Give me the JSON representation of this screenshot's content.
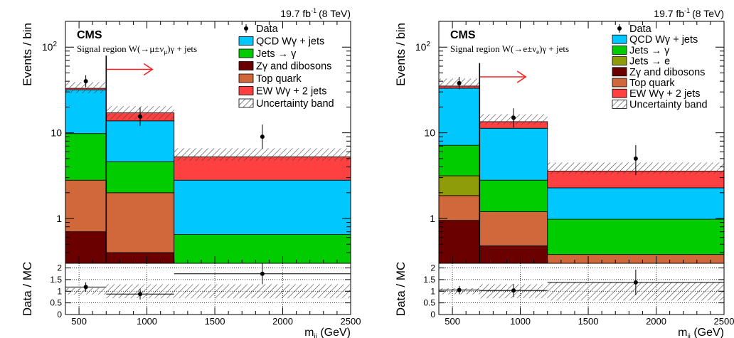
{
  "chart_data": [
    {
      "type": "bar",
      "stacked": true,
      "log_scale_y": true,
      "experiment": "CMS",
      "luminosity": "19.7 fb",
      "luminosity_sup": "-1",
      "energy": "(8 TeV)",
      "region": {
        "pre": "Signal region W(",
        "process": "→μ±ν",
        "sub": "μ",
        "post": ")γ + jets"
      },
      "ylabel": "Events / bin",
      "xlabel": "m",
      "xlabel_sub": "jj",
      "xlabel_unit": " (GeV)",
      "ratio_label": "Data / MC",
      "xlim": [
        400,
        2500
      ],
      "ylim": [
        0.3,
        200
      ],
      "ratio_ylim": [
        0,
        2.2
      ],
      "bins": [
        [
          400,
          700
        ],
        [
          700,
          1200
        ],
        [
          1200,
          2500
        ]
      ],
      "x_ticks": [
        500,
        1000,
        1500,
        2000,
        2500
      ],
      "y_ticks": [
        {
          "v": 1,
          "label": "1"
        },
        {
          "v": 10,
          "label": "10"
        },
        {
          "v": 100,
          "label": "10",
          "sup": "2"
        }
      ],
      "ratio_ticks": [
        "0",
        "0.5",
        "1",
        "1.5",
        "2"
      ],
      "grid": true,
      "legend_position": "top-right",
      "series": [
        {
          "name": "Zγ and dibosons",
          "color": "#6b0000",
          "values": [
            0.7,
            0.4,
            0.1
          ]
        },
        {
          "name": "Top quark",
          "color": "#d1683b",
          "values": [
            2.1,
            1.6,
            0.2
          ]
        },
        {
          "name": "Jets → γ",
          "color": "#00cc00",
          "values": [
            7.0,
            2.6,
            0.35
          ]
        },
        {
          "name": "QCD Wγ + jets",
          "color": "#00c8ff",
          "values": [
            22.0,
            9.2,
            2.15
          ]
        },
        {
          "name": "EW Wγ + 2 jets",
          "color": "#ff4040",
          "values": [
            1.3,
            3.3,
            2.45
          ]
        }
      ],
      "legend": [
        {
          "label": "Data",
          "kind": "data"
        },
        {
          "label": "QCD Wγ + jets",
          "color": "#00c8ff"
        },
        {
          "label": "Jets → γ",
          "color": "#00cc00"
        },
        {
          "label": "Zγ and dibosons",
          "color": "#6b0000"
        },
        {
          "label": "Top quark",
          "color": "#d1683b"
        },
        {
          "label": "EW Wγ + 2 jets",
          "color": "#ff4040"
        },
        {
          "label": "Uncertainty band",
          "kind": "hatch"
        }
      ],
      "uncertainty_band": {
        "lower": [
          29,
          14.3,
          4.7
        ],
        "upper": [
          39,
          20.5,
          6.6
        ]
      },
      "data": {
        "x": [
          550,
          950,
          1850
        ],
        "y": [
          40,
          15.5,
          9
        ],
        "yerr_low": [
          6,
          3.5,
          2.5
        ],
        "yerr_high": [
          7,
          4.3,
          3.5
        ]
      },
      "ratio": {
        "x": [
          550,
          950,
          1850
        ],
        "y": [
          1.18,
          0.88,
          1.75
        ],
        "yerr_low": [
          0.2,
          0.23,
          0.45
        ],
        "yerr_high": [
          0.2,
          0.23,
          0.45
        ],
        "band_low": [
          0.86,
          0.7,
          0.7
        ],
        "band_high": [
          1.14,
          1.3,
          1.3
        ]
      },
      "arrow": {
        "from": 700,
        "to": 1040,
        "y": 55,
        "color": "#ff2020"
      }
    },
    {
      "type": "bar",
      "stacked": true,
      "log_scale_y": true,
      "experiment": "CMS",
      "luminosity": "19.7 fb",
      "luminosity_sup": "-1",
      "energy": "(8 TeV)",
      "region": {
        "pre": "Signal region W(",
        "process": "→e±ν",
        "sub": "e",
        "post": ")γ + jets"
      },
      "ylabel": "Events / bin",
      "xlabel": "m",
      "xlabel_sub": "jj",
      "xlabel_unit": " (GeV)",
      "ratio_label": "Data / MC",
      "xlim": [
        400,
        2500
      ],
      "ylim": [
        0.3,
        200
      ],
      "ratio_ylim": [
        0,
        2.2
      ],
      "bins": [
        [
          400,
          700
        ],
        [
          700,
          1200
        ],
        [
          1200,
          2500
        ]
      ],
      "x_ticks": [
        500,
        1000,
        1500,
        2000,
        2500
      ],
      "y_ticks": [
        {
          "v": 1,
          "label": "1"
        },
        {
          "v": 10,
          "label": "10"
        },
        {
          "v": 100,
          "label": "10",
          "sup": "2"
        }
      ],
      "ratio_ticks": [
        "0",
        "0.5",
        "1",
        "1.5",
        "2"
      ],
      "grid": true,
      "legend_position": "top-right",
      "series": [
        {
          "name": "Zγ and dibosons",
          "color": "#6b0000",
          "values": [
            0.95,
            0.48,
            0.1
          ]
        },
        {
          "name": "Top quark",
          "color": "#d1683b",
          "values": [
            0.9,
            0.72,
            0.28
          ]
        },
        {
          "name": "Jets → e",
          "color": "#8e9c0a",
          "values": [
            1.3,
            0.0,
            0.0
          ]
        },
        {
          "name": "Jets → γ",
          "color": "#00cc00",
          "values": [
            4.0,
            1.6,
            0.6
          ]
        },
        {
          "name": "QCD Wγ + jets",
          "color": "#00c8ff",
          "values": [
            26.0,
            8.5,
            1.3
          ]
        },
        {
          "name": "EW Wγ + 2 jets",
          "color": "#ff4040",
          "values": [
            2.0,
            2.2,
            1.3
          ]
        }
      ],
      "legend": [
        {
          "label": "Data",
          "kind": "data"
        },
        {
          "label": "QCD Wγ + jets",
          "color": "#00c8ff"
        },
        {
          "label": "Jets → γ",
          "color": "#00cc00"
        },
        {
          "label": "Jets → e",
          "color": "#8e9c0a"
        },
        {
          "label": "Zγ and dibosons",
          "color": "#6b0000"
        },
        {
          "label": "Top quark",
          "color": "#d1683b"
        },
        {
          "label": "EW Wγ + 2 jets",
          "color": "#ff4040"
        },
        {
          "label": "Uncertainty band",
          "kind": "hatch"
        }
      ],
      "uncertainty_band": {
        "lower": [
          33,
          12.5,
          3.3
        ],
        "upper": [
          43,
          16.5,
          4.5
        ]
      },
      "data": {
        "x": [
          550,
          950,
          1850
        ],
        "y": [
          38,
          15,
          5
        ],
        "yerr_low": [
          6,
          3.5,
          1.8
        ],
        "yerr_high": [
          7,
          4.3,
          2.2
        ]
      },
      "ratio": {
        "x": [
          550,
          950,
          1850
        ],
        "y": [
          1.05,
          1.03,
          1.38
        ],
        "yerr_low": [
          0.18,
          0.28,
          0.55
        ],
        "yerr_high": [
          0.18,
          0.28,
          0.55
        ],
        "band_low": [
          0.87,
          0.7,
          0.6
        ],
        "band_high": [
          1.13,
          1.3,
          1.4
        ]
      },
      "arrow": {
        "from": 700,
        "to": 1040,
        "y": 45,
        "color": "#ff2020"
      }
    }
  ]
}
